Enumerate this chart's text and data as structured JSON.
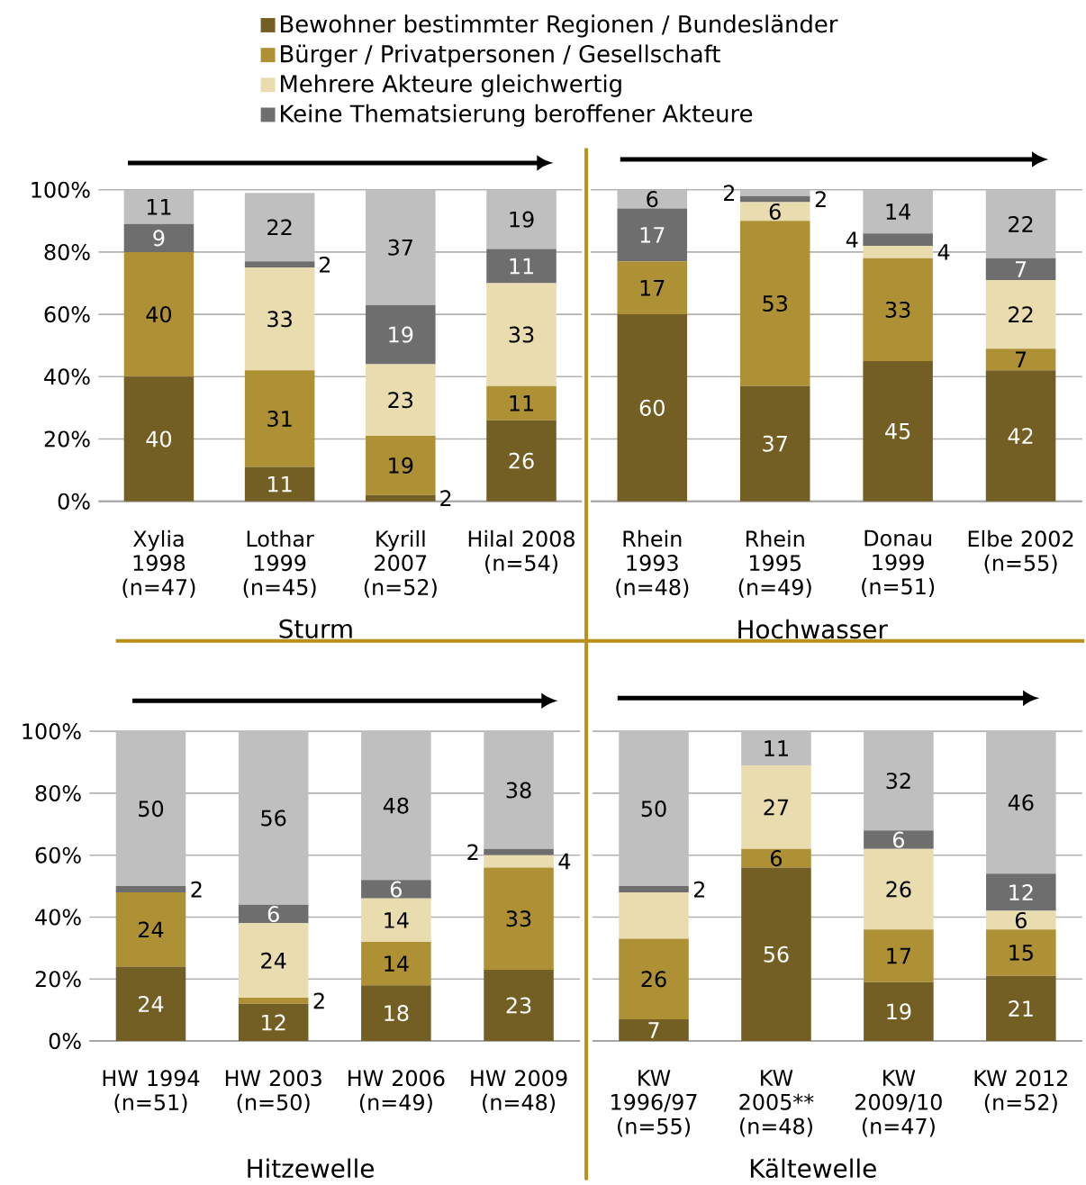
{
  "chart_data": [
    {
      "type": "bar",
      "stacked": true,
      "xlabel": "Sturm",
      "categories": [
        "Xylia 1998 (n=47)",
        "Lothar 1999 (n=45)",
        "Kyrill 2007 (n=52)",
        "Hilal 2008 (n=54)"
      ],
      "ylim": [
        0,
        100
      ],
      "yticks": [
        {
          "value": 0,
          "label": "0%"
        },
        {
          "value": 20,
          "label": "20%"
        },
        {
          "value": 40,
          "label": "40%"
        },
        {
          "value": 60,
          "label": "60%"
        },
        {
          "value": 80,
          "label": "80%"
        },
        {
          "value": 100,
          "label": "100%"
        }
      ],
      "grid": "y",
      "legend": "top",
      "series": [
        {
          "name": "Bewohner bestimmter Regionen / Bundesländer",
          "color": "#735f24",
          "values": [
            40,
            11,
            2,
            26
          ],
          "value_labels": [
            "40",
            "11",
            "2",
            "26"
          ]
        },
        {
          "name": "Bürger / Privatpersonen / Gesellschaft",
          "color": "#ae9035",
          "values": [
            40,
            31,
            19,
            11
          ],
          "value_labels": [
            "40",
            "31",
            "19",
            "11"
          ]
        },
        {
          "name": "Mehrere Akteure gleichwertig",
          "color": "#e9dcae",
          "values": [
            0,
            33,
            23,
            33
          ],
          "value_labels": [
            null,
            "33",
            "23",
            "33"
          ]
        },
        {
          "name": "Keine Thematsierung beroffener Akteure",
          "color": "#6e6e6e",
          "values": [
            9,
            2,
            19,
            11
          ],
          "value_labels": [
            "9",
            "2",
            "19",
            "11"
          ]
        },
        {
          "color": "#bfbfbf",
          "values": [
            11,
            22,
            37,
            19
          ],
          "value_labels": [
            "11",
            "22",
            "37",
            "19"
          ]
        }
      ]
    },
    {
      "type": "bar",
      "stacked": true,
      "xlabel": "Hochwasser",
      "categories": [
        "Rhein 1993 (n=48)",
        "Rhein 1995 (n=49)",
        "Donau 1999 (n=51)",
        "Elbe 2002 (n=55)"
      ],
      "ylim": [
        0,
        100
      ],
      "yticks": [
        0,
        20,
        40,
        60,
        80,
        100
      ],
      "grid": "y",
      "tick_labels": "x",
      "series": [
        {
          "color": "#735f24",
          "values": [
            60,
            37,
            45,
            42
          ],
          "value_labels": [
            "60",
            "37",
            "45",
            "42"
          ]
        },
        {
          "color": "#ae9035",
          "values": [
            17,
            53,
            33,
            7
          ],
          "value_labels": [
            "17",
            "53",
            "33",
            "7"
          ]
        },
        {
          "color": "#e9dcae",
          "values": [
            0,
            6,
            4,
            22
          ],
          "value_labels": [
            null,
            "6",
            "4",
            "22"
          ]
        },
        {
          "color": "#6e6e6e",
          "values": [
            17,
            2,
            4,
            7
          ],
          "value_labels": [
            "17",
            "2",
            "4",
            "7"
          ]
        },
        {
          "color": "#bfbfbf",
          "values": [
            6,
            2,
            14,
            22
          ],
          "value_labels": [
            "6",
            "2",
            "14",
            "22"
          ]
        }
      ]
    },
    {
      "type": "bar",
      "stacked": true,
      "xlabel": "Hitzewelle",
      "categories": [
        "HW 1994 (n=51)",
        "HW 2003 (n=50)",
        "HW 2006 (n=49)",
        "HW 2009 (n=48)"
      ],
      "ylim": [
        0,
        100
      ],
      "yticks": [
        {
          "value": 0,
          "label": "0%"
        },
        {
          "value": 20,
          "label": "20%"
        },
        {
          "value": 40,
          "label": "40%"
        },
        {
          "value": 60,
          "label": "60%"
        },
        {
          "value": 80,
          "label": "80%"
        },
        {
          "value": 100,
          "label": "100%"
        }
      ],
      "grid": "y",
      "series": [
        {
          "color": "#735f24",
          "values": [
            24,
            12,
            18,
            23
          ],
          "value_labels": [
            "24",
            "12",
            "18",
            "23"
          ]
        },
        {
          "color": "#ae9035",
          "values": [
            24,
            2,
            14,
            33
          ],
          "value_labels": [
            "24",
            "2",
            "14",
            "33"
          ]
        },
        {
          "color": "#e9dcae",
          "values": [
            0,
            24,
            14,
            4
          ],
          "value_labels": [
            null,
            "24",
            "14",
            "4"
          ]
        },
        {
          "color": "#6e6e6e",
          "values": [
            2,
            6,
            6,
            2
          ],
          "value_labels": [
            "2",
            "6",
            "6",
            "2"
          ]
        },
        {
          "color": "#bfbfbf",
          "values": [
            50,
            56,
            48,
            38
          ],
          "value_labels": [
            "50",
            "56",
            "48",
            "38"
          ]
        }
      ]
    },
    {
      "type": "bar",
      "stacked": true,
      "xlabel": "Kältewelle",
      "categories": [
        "KW 1996/97 (n=55)",
        "KW 2005** (n=48)",
        "KW 2009/10 (n=47)",
        "KW 2012 (n=52)"
      ],
      "ylim": [
        0,
        100
      ],
      "yticks": [
        0,
        20,
        40,
        60,
        80,
        100
      ],
      "grid": "y",
      "tick_labels": "x",
      "series": [
        {
          "color": "#735f24",
          "values": [
            7,
            56,
            19,
            21
          ],
          "value_labels": [
            "7",
            "56",
            "19",
            "21"
          ]
        },
        {
          "color": "#ae9035",
          "values": [
            26,
            6,
            17,
            15
          ],
          "value_labels": [
            "26",
            "6",
            "17",
            "15"
          ]
        },
        {
          "color": "#e9dcae",
          "values": [
            15,
            27,
            26,
            6
          ],
          "value_labels": [
            null,
            "27",
            "26",
            "6"
          ]
        },
        {
          "color": "#6e6e6e",
          "values": [
            2,
            0,
            6,
            12
          ],
          "value_labels": [
            "2",
            null,
            "6",
            "12"
          ]
        },
        {
          "color": "#bfbfbf",
          "values": [
            50,
            11,
            32,
            46
          ],
          "value_labels": [
            "50",
            "11",
            "32",
            "46"
          ]
        }
      ]
    }
  ]
}
